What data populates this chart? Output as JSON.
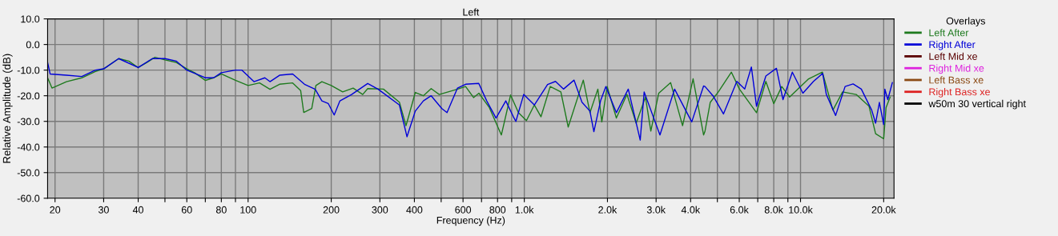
{
  "chart_data": {
    "type": "line",
    "title": "Left",
    "xlabel": "Frequency (Hz)",
    "ylabel": "Relative Amplitude (dB)",
    "legend_title": "Overlays",
    "log": "x",
    "grid": true,
    "legend": "right",
    "line_style": "solid",
    "marker": "none",
    "xlim": [
      18.8,
      21800
    ],
    "ylim": [
      -60,
      10
    ],
    "xticks": [
      20,
      30,
      40,
      {
        "value": 50,
        "label": null
      },
      60,
      {
        "value": 70,
        "label": null
      },
      80,
      {
        "value": 90,
        "label": null
      },
      100,
      200,
      300,
      400,
      {
        "value": 500,
        "label": null
      },
      600,
      {
        "value": 700,
        "label": null
      },
      800,
      {
        "value": 900,
        "label": null
      },
      {
        "value": 1000,
        "label": "1.0k"
      },
      {
        "value": 2000,
        "label": "2.0k"
      },
      {
        "value": 3000,
        "label": "3.0k"
      },
      {
        "value": 4000,
        "label": "4.0k"
      },
      {
        "value": 5000,
        "label": null
      },
      {
        "value": 6000,
        "label": "6.0k"
      },
      {
        "value": 7000,
        "label": null
      },
      {
        "value": 8000,
        "label": "8.0k"
      },
      {
        "value": 9000,
        "label": null
      },
      {
        "value": 10000,
        "label": "10.0k"
      },
      {
        "value": 20000,
        "label": "20.0k"
      }
    ],
    "yticks": [
      {
        "value": 10,
        "label": "10.0"
      },
      {
        "value": 0,
        "label": "0.0"
      },
      {
        "value": -10,
        "label": "-10.0"
      },
      {
        "value": -20,
        "label": "-20.0"
      },
      {
        "value": -30,
        "label": "-30.0"
      },
      {
        "value": -40,
        "label": "-40.0"
      },
      {
        "value": -50,
        "label": "-50.0"
      },
      {
        "value": -60,
        "label": "-60.0"
      }
    ],
    "series": [
      {
        "name": "Left After",
        "color": "#1e7a1e",
        "x": [
          18.8,
          19.5,
          22,
          25,
          28,
          30,
          34,
          37,
          40,
          43,
          46,
          50,
          55,
          60,
          64,
          70,
          75,
          80,
          90,
          100,
          110,
          120,
          130,
          145,
          155,
          159,
          170,
          176,
          185,
          200,
          220,
          240,
          260,
          271,
          309,
          353,
          373,
          403,
          431,
          460,
          492,
          574,
          613,
          655,
          685,
          747,
          826,
          892,
          952,
          1018,
          1087,
          1149,
          1241,
          1356,
          1442,
          1635,
          1729,
          1846,
          1908,
          1995,
          2154,
          2353,
          2541,
          2746,
          2871,
          3067,
          3387,
          3741,
          4084,
          4457,
          4510,
          4710,
          5040,
          5620,
          6010,
          6930,
          7490,
          8000,
          8550,
          9130,
          10700,
          12000,
          13100,
          14200,
          15900,
          17700,
          18700,
          20000,
          20400,
          21100
        ],
        "values": [
          -13,
          -17,
          -14.5,
          -13,
          -10.5,
          -9.5,
          -5.5,
          -6.5,
          -9,
          -7,
          -5,
          -6,
          -7,
          -9.5,
          -11,
          -14,
          -13,
          -11.5,
          -14,
          -16,
          -15,
          -17.5,
          -15.5,
          -15,
          -18,
          -26.5,
          -25,
          -16,
          -14.5,
          -16,
          -18.5,
          -17,
          -19.5,
          -17.2,
          -17.4,
          -22.5,
          -31.7,
          -18.7,
          -20,
          -17.2,
          -19.5,
          -17.4,
          -16.4,
          -20.7,
          -19,
          -24.6,
          -35.3,
          -19.7,
          -26.6,
          -29.7,
          -23.6,
          -28.2,
          -16.4,
          -18.5,
          -32.2,
          -13.9,
          -26.6,
          -17.4,
          -30.2,
          -16.4,
          -28.7,
          -19.5,
          -30.7,
          -20.5,
          -33.8,
          -19,
          -14.9,
          -31.7,
          -13.4,
          -35.3,
          -33.8,
          -22.6,
          -18.5,
          -10.8,
          -17.4,
          -26.6,
          -14.4,
          -23.1,
          -16.4,
          -20.5,
          -13.4,
          -10.8,
          -25.6,
          -18.5,
          -19.5,
          -24.1,
          -34.8,
          -36.8,
          -24.6,
          -20.5
        ]
      },
      {
        "name": "Right After",
        "color": "#0000d8",
        "x": [
          18.8,
          19.2,
          22,
          25,
          28,
          30,
          34,
          40,
          45,
          50,
          55,
          60,
          70,
          75,
          80,
          90,
          95,
          105,
          115,
          120,
          130,
          145,
          160,
          175,
          185,
          195,
          205,
          215,
          237,
          271,
          296,
          353,
          376,
          403,
          431,
          460,
          503,
          525,
          573,
          613,
          684,
          731,
          790,
          857,
          911,
          932,
          995,
          1088,
          1214,
          1297,
          1386,
          1514,
          1617,
          1728,
          1786,
          1888,
          1973,
          2154,
          2379,
          2628,
          2716,
          3098,
          3500,
          4038,
          4457,
          4510,
          4820,
          5260,
          5880,
          6280,
          6640,
          6930,
          7490,
          8180,
          8640,
          9340,
          10200,
          11140,
          12030,
          12400,
          13400,
          14500,
          15500,
          16600,
          18100,
          18700,
          19300,
          20000,
          20200,
          20700,
          21500
        ],
        "values": [
          -7,
          -11.5,
          -12,
          -12.5,
          -10,
          -9.5,
          -5.5,
          -9,
          -5.5,
          -5.5,
          -6.5,
          -10,
          -13,
          -13,
          -11,
          -10,
          -10,
          -14.5,
          -13,
          -14.5,
          -12,
          -11.5,
          -15.5,
          -17.5,
          -22,
          -23,
          -27.5,
          -22,
          -19.5,
          -15.2,
          -17.5,
          -23.6,
          -36,
          -26,
          -22,
          -20,
          -25,
          -26.6,
          -17,
          -15.5,
          -15.2,
          -22,
          -28.7,
          -22,
          -28,
          -30,
          -19.5,
          -23.6,
          -15.6,
          -14.4,
          -17.4,
          -13.9,
          -22.5,
          -26,
          -34,
          -22,
          -16.4,
          -26.6,
          -17.4,
          -37.3,
          -18.5,
          -35.3,
          -17.4,
          -30.2,
          -16.2,
          -16.4,
          -20,
          -27.1,
          -14.4,
          -17.4,
          -8.8,
          -24.1,
          -12.3,
          -9.3,
          -21.5,
          -10.8,
          -19,
          -14.4,
          -11.3,
          -19.5,
          -27.7,
          -16.4,
          -15.4,
          -17.4,
          -25.6,
          -30.7,
          -22.6,
          -31.2,
          -17.4,
          -21.5,
          -14.9
        ]
      },
      {
        "name": "Left Mid xe",
        "color": "#5a0000"
      },
      {
        "name": "Right Mid xe",
        "color": "#dd22dd"
      },
      {
        "name": "Left Bass xe",
        "color": "#8b4a14"
      },
      {
        "name": "Right Bass xe",
        "color": "#dd2020"
      },
      {
        "name": "w50m 30 vertical right",
        "color": "#000000"
      }
    ]
  }
}
